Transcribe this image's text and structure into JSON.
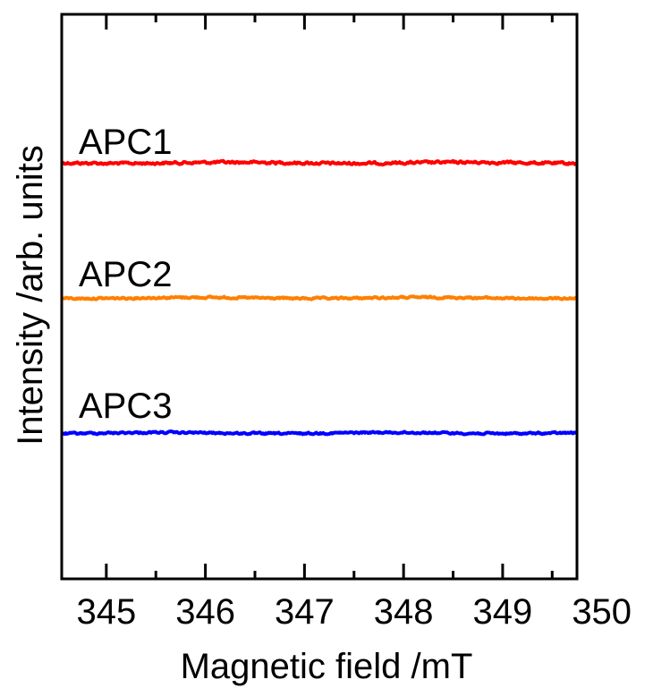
{
  "chart_data": {
    "type": "line",
    "xlabel": "Magnetic field /mT",
    "ylabel": "Intensity /arb. units",
    "xlim": [
      344.55,
      349.75
    ],
    "xticks": [
      345,
      346,
      347,
      348,
      349,
      350
    ],
    "yticks_labeled": false,
    "grid": false,
    "series": [
      {
        "name": "APC1",
        "color": "#ff0000",
        "offset": 3,
        "noise": 0.08
      },
      {
        "name": "APC2",
        "color": "#ff7f00",
        "offset": 2,
        "noise": 0.06
      },
      {
        "name": "APC3",
        "color": "#0000ff",
        "offset": 1,
        "noise": 0.06
      }
    ]
  }
}
